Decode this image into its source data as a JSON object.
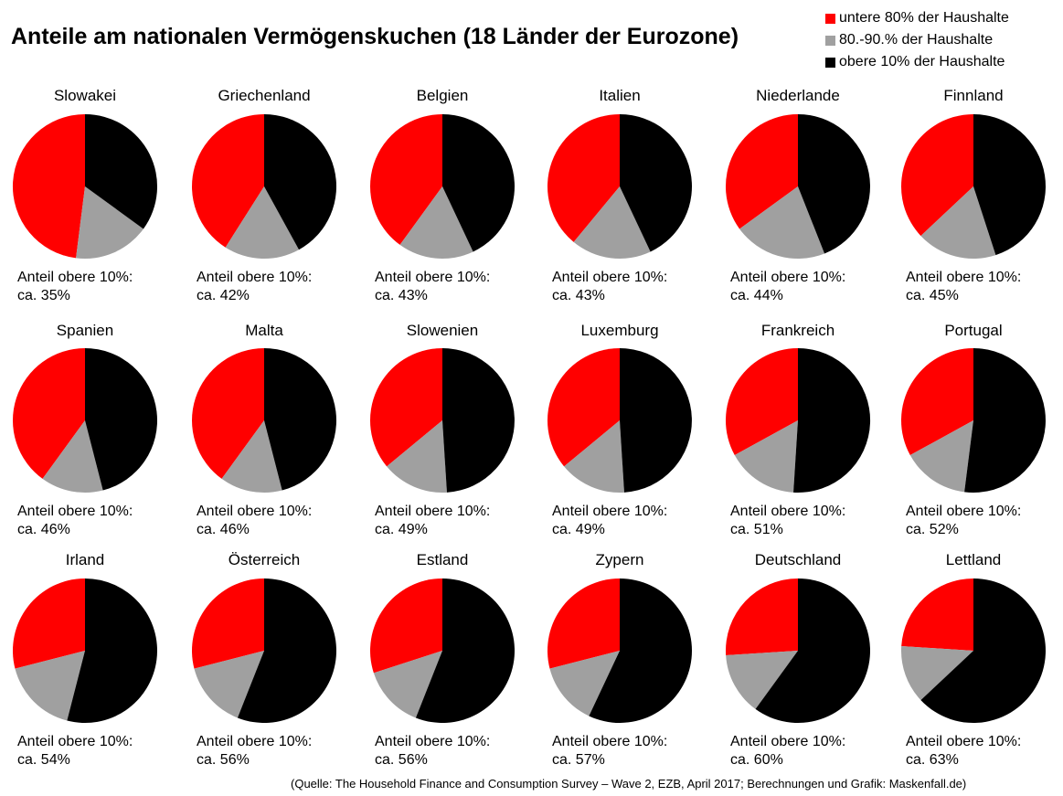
{
  "title": "Anteile am nationalen Vermögenskuchen (18 Länder der Eurozone)",
  "legend": [
    {
      "label": "untere 80% der Haushalte",
      "color": "#ff0000"
    },
    {
      "label": "80.-90.% der Haushalte",
      "color": "#a0a0a0"
    },
    {
      "label": "obere 10% der Haushalte",
      "color": "#000000"
    }
  ],
  "source": "(Quelle: The Household Finance and Consumption Survey – Wave 2, EZB, April 2017; Berechnungen und Grafik: Maskenfall.de)",
  "chart_data": {
    "type": "pie",
    "series_names": [
      "untere 80% der Haushalte",
      "80.-90.% der Haushalte",
      "obere 10% der Haushalte"
    ],
    "colors": [
      "#ff0000",
      "#a0a0a0",
      "#000000"
    ],
    "caption_label": "Anteil obere 10%:",
    "charts": [
      {
        "country": "Slowakei",
        "values": [
          48,
          17,
          35
        ],
        "caption": "ca. 35%"
      },
      {
        "country": "Griechenland",
        "values": [
          41,
          17,
          42
        ],
        "caption": "ca. 42%"
      },
      {
        "country": "Belgien",
        "values": [
          40,
          17,
          43
        ],
        "caption": "ca. 43%"
      },
      {
        "country": "Italien",
        "values": [
          39,
          18,
          43
        ],
        "caption": "ca. 43%"
      },
      {
        "country": "Niederlande",
        "values": [
          35,
          21,
          44
        ],
        "caption": "ca. 44%"
      },
      {
        "country": "Finnland",
        "values": [
          37,
          18,
          45
        ],
        "caption": "ca. 45%"
      },
      {
        "country": "Spanien",
        "values": [
          40,
          14,
          46
        ],
        "caption": "ca. 46%"
      },
      {
        "country": "Malta",
        "values": [
          40,
          14,
          46
        ],
        "caption": "ca. 46%"
      },
      {
        "country": "Slowenien",
        "values": [
          36,
          15,
          49
        ],
        "caption": "ca. 49%"
      },
      {
        "country": "Luxemburg",
        "values": [
          36,
          15,
          49
        ],
        "caption": "ca. 49%"
      },
      {
        "country": "Frankreich",
        "values": [
          33,
          16,
          51
        ],
        "caption": "ca. 51%"
      },
      {
        "country": "Portugal",
        "values": [
          33,
          15,
          52
        ],
        "caption": "ca. 52%"
      },
      {
        "country": "Irland",
        "values": [
          29,
          17,
          54
        ],
        "caption": "ca. 54%"
      },
      {
        "country": "Österreich",
        "values": [
          29,
          15,
          56
        ],
        "caption": "ca. 56%"
      },
      {
        "country": "Estland",
        "values": [
          30,
          14,
          56
        ],
        "caption": "ca. 56%"
      },
      {
        "country": "Zypern",
        "values": [
          29,
          14,
          57
        ],
        "caption": "ca. 57%"
      },
      {
        "country": "Deutschland",
        "values": [
          26,
          14,
          60
        ],
        "caption": "ca. 60%"
      },
      {
        "country": "Lettland",
        "values": [
          24,
          13,
          63
        ],
        "caption": "ca. 63%"
      }
    ]
  }
}
